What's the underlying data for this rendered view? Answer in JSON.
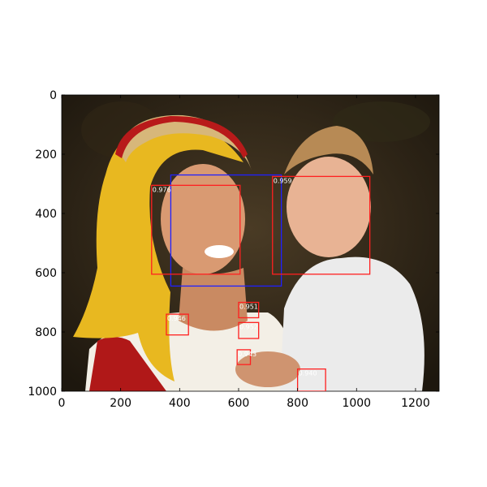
{
  "chart_data": {
    "type": "image-detections",
    "image_description": "Woman with yellow headscarf and straw hat holding a young boy",
    "image_size": [
      1280,
      1000
    ],
    "xlim": [
      0,
      1280
    ],
    "ylim": [
      1000,
      0
    ],
    "x_ticks": [
      0,
      200,
      400,
      600,
      800,
      1000,
      1200
    ],
    "y_ticks": [
      0,
      200,
      400,
      600,
      800,
      1000
    ],
    "colors": {
      "detection": "#ff2020",
      "ground_truth": "#2020ff",
      "label_text": "#ffffff",
      "axes": "#000000"
    },
    "boxes": [
      {
        "kind": "ground_truth",
        "x0": 370,
        "y0": 270,
        "x1": 745,
        "y1": 645,
        "label": ""
      },
      {
        "kind": "detection",
        "x0": 305,
        "y0": 305,
        "x1": 605,
        "y1": 605,
        "label": "0.976"
      },
      {
        "kind": "detection",
        "x0": 715,
        "y0": 275,
        "x1": 1045,
        "y1": 605,
        "label": "0.959"
      },
      {
        "kind": "detection",
        "x0": 600,
        "y0": 700,
        "x1": 668,
        "y1": 752,
        "label": "0.951"
      },
      {
        "kind": "detection",
        "x0": 600,
        "y0": 768,
        "x1": 668,
        "y1": 822,
        "label": "0.952"
      },
      {
        "kind": "detection",
        "x0": 355,
        "y0": 740,
        "x1": 430,
        "y1": 810,
        "label": "0.946"
      },
      {
        "kind": "detection",
        "x0": 595,
        "y0": 860,
        "x1": 640,
        "y1": 910,
        "label": "0.943"
      },
      {
        "kind": "detection",
        "x0": 800,
        "y0": 925,
        "x1": 895,
        "y1": 1000,
        "label": "0.940"
      }
    ]
  }
}
